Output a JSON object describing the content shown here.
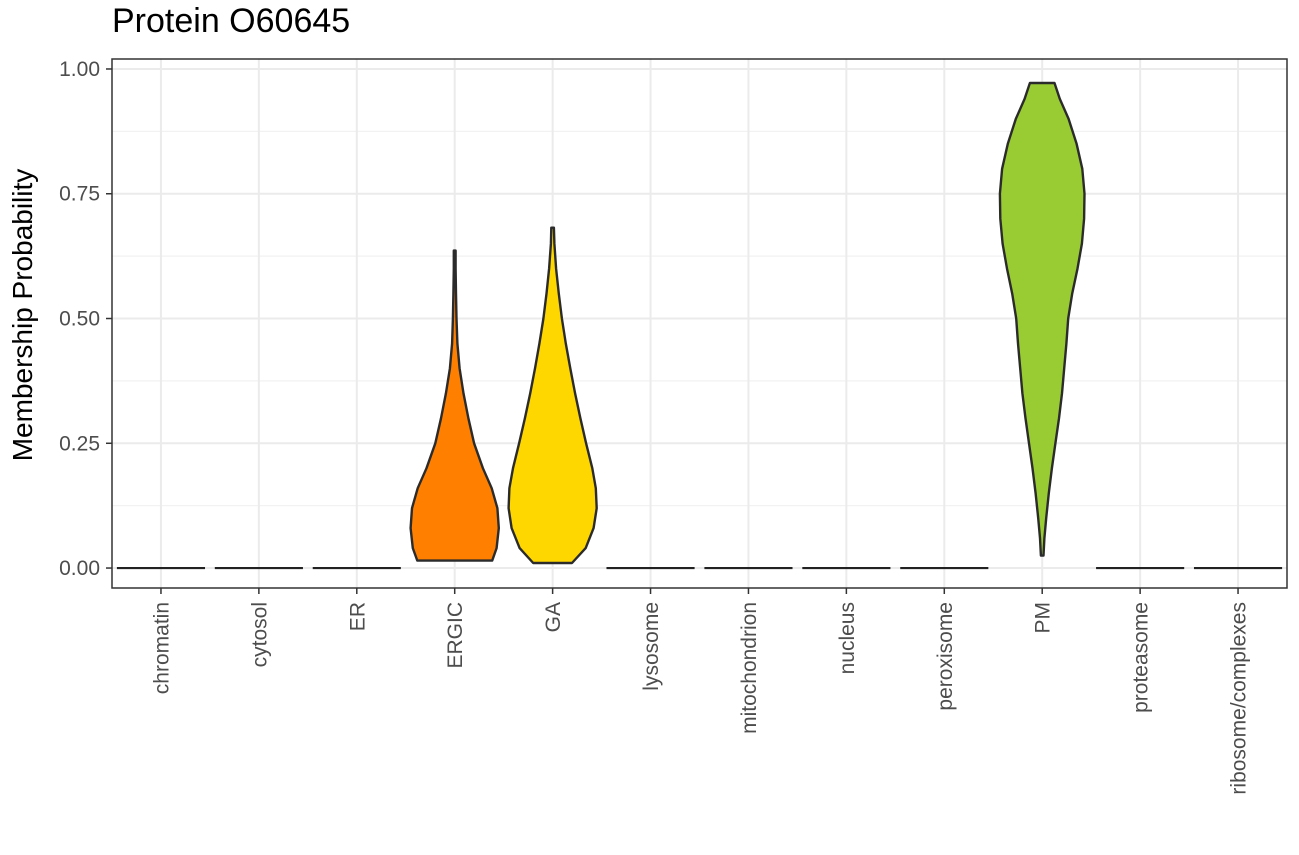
{
  "chart_data": {
    "type": "violin",
    "title": "Protein O60645",
    "xlabel": "",
    "ylabel": "Membership Probability",
    "ylim": [
      -0.04,
      1.02
    ],
    "yticks": [
      0.0,
      0.25,
      0.5,
      0.75,
      1.0
    ],
    "ytick_labels": [
      "0.00",
      "0.25",
      "0.50",
      "0.75",
      "1.00"
    ],
    "grid": true,
    "legend": "none",
    "categories": [
      "chromatin",
      "cytosol",
      "ER",
      "ERGIC",
      "GA",
      "lysosome",
      "mitochondrion",
      "nucleus",
      "peroxisome",
      "PM",
      "proteasome",
      "ribosome/complexes"
    ],
    "violins": [
      {
        "category": "chromatin",
        "color": "#ffffff",
        "min": 0.0,
        "max": 0.0,
        "profile": []
      },
      {
        "category": "cytosol",
        "color": "#ffffff",
        "min": 0.0,
        "max": 0.0,
        "profile": []
      },
      {
        "category": "ER",
        "color": "#ffffff",
        "min": 0.0,
        "max": 0.0,
        "profile": []
      },
      {
        "category": "ERGIC",
        "color": "#ff7f00",
        "min": 0.015,
        "max": 0.636,
        "profile": [
          [
            0.015,
            0.85
          ],
          [
            0.04,
            0.95
          ],
          [
            0.08,
            1.0
          ],
          [
            0.12,
            0.97
          ],
          [
            0.16,
            0.84
          ],
          [
            0.2,
            0.64
          ],
          [
            0.25,
            0.44
          ],
          [
            0.3,
            0.31
          ],
          [
            0.35,
            0.2
          ],
          [
            0.4,
            0.11
          ],
          [
            0.45,
            0.06
          ],
          [
            0.5,
            0.04
          ],
          [
            0.55,
            0.03
          ],
          [
            0.6,
            0.02
          ],
          [
            0.636,
            0.02
          ]
        ]
      },
      {
        "category": "GA",
        "color": "#ffd700",
        "min": 0.01,
        "max": 0.682,
        "profile": [
          [
            0.01,
            0.44
          ],
          [
            0.04,
            0.75
          ],
          [
            0.08,
            0.93
          ],
          [
            0.12,
            1.0
          ],
          [
            0.16,
            0.98
          ],
          [
            0.2,
            0.9
          ],
          [
            0.25,
            0.76
          ],
          [
            0.3,
            0.63
          ],
          [
            0.35,
            0.51
          ],
          [
            0.4,
            0.4
          ],
          [
            0.45,
            0.3
          ],
          [
            0.5,
            0.21
          ],
          [
            0.55,
            0.14
          ],
          [
            0.6,
            0.08
          ],
          [
            0.65,
            0.04
          ],
          [
            0.682,
            0.03
          ]
        ]
      },
      {
        "category": "lysosome",
        "color": "#ffffff",
        "min": 0.0,
        "max": 0.0,
        "profile": []
      },
      {
        "category": "mitochondrion",
        "color": "#ffffff",
        "min": 0.0,
        "max": 0.0,
        "profile": []
      },
      {
        "category": "nucleus",
        "color": "#ffffff",
        "min": 0.0,
        "max": 0.0,
        "profile": []
      },
      {
        "category": "peroxisome",
        "color": "#ffffff",
        "min": 0.0,
        "max": 0.0,
        "profile": []
      },
      {
        "category": "PM",
        "color": "#99cc33",
        "min": 0.025,
        "max": 0.972,
        "profile": [
          [
            0.025,
            0.03
          ],
          [
            0.06,
            0.05
          ],
          [
            0.1,
            0.09
          ],
          [
            0.15,
            0.15
          ],
          [
            0.2,
            0.22
          ],
          [
            0.25,
            0.3
          ],
          [
            0.3,
            0.38
          ],
          [
            0.35,
            0.45
          ],
          [
            0.4,
            0.5
          ],
          [
            0.45,
            0.55
          ],
          [
            0.5,
            0.59
          ],
          [
            0.55,
            0.68
          ],
          [
            0.6,
            0.8
          ],
          [
            0.65,
            0.9
          ],
          [
            0.7,
            0.95
          ],
          [
            0.75,
            0.96
          ],
          [
            0.8,
            0.91
          ],
          [
            0.85,
            0.78
          ],
          [
            0.9,
            0.6
          ],
          [
            0.94,
            0.4
          ],
          [
            0.972,
            0.28
          ]
        ]
      },
      {
        "category": "proteasome",
        "color": "#ffffff",
        "min": 0.0,
        "max": 0.0,
        "profile": []
      },
      {
        "category": "ribosome/complexes",
        "color": "#ffffff",
        "min": 0.0,
        "max": 0.0,
        "profile": []
      }
    ]
  }
}
